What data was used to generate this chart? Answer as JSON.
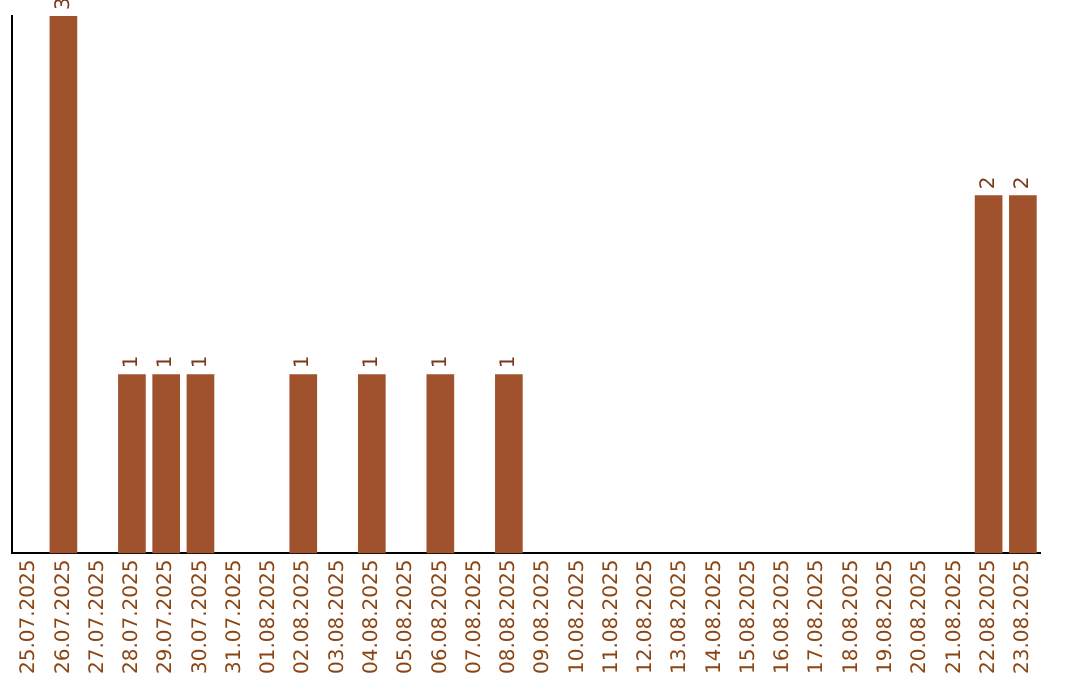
{
  "chart_data": {
    "type": "bar",
    "categories": [
      "25.07.2025",
      "26.07.2025",
      "27.07.2025",
      "28.07.2025",
      "29.07.2025",
      "30.07.2025",
      "31.07.2025",
      "01.08.2025",
      "02.08.2025",
      "03.08.2025",
      "04.08.2025",
      "05.08.2025",
      "06.08.2025",
      "07.08.2025",
      "08.08.2025",
      "09.08.2025",
      "10.08.2025",
      "11.08.2025",
      "12.08.2025",
      "13.08.2025",
      "14.08.2025",
      "15.08.2025",
      "16.08.2025",
      "17.08.2025",
      "18.08.2025",
      "19.08.2025",
      "20.08.2025",
      "21.08.2025",
      "22.08.2025",
      "23.08.2025"
    ],
    "values": [
      null,
      3,
      null,
      1,
      1,
      1,
      null,
      null,
      1,
      null,
      1,
      null,
      1,
      null,
      1,
      null,
      null,
      null,
      null,
      null,
      null,
      null,
      null,
      null,
      null,
      null,
      null,
      null,
      2,
      2
    ],
    "color": "#a0522d",
    "data_labels": true,
    "grid": false,
    "legend": false,
    "tick_labels": "x"
  }
}
